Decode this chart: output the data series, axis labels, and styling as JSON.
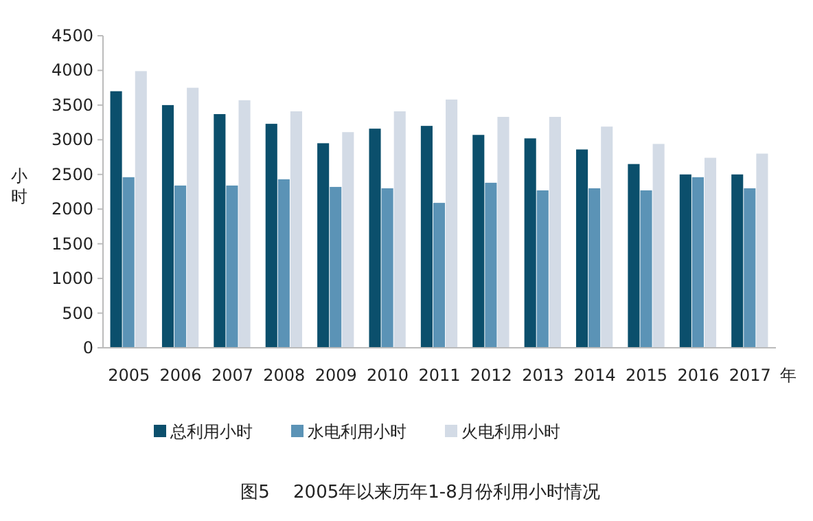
{
  "chart_data": {
    "type": "bar",
    "title": "图5　 2005年以来历年1-8月份利用小时情况",
    "xlabel": "年",
    "ylabel": "小时",
    "categories": [
      "2005",
      "2006",
      "2007",
      "2008",
      "2009",
      "2010",
      "2011",
      "2012",
      "2013",
      "2014",
      "2015",
      "2016",
      "2017"
    ],
    "ylim": [
      0,
      4500
    ],
    "yticks": [
      0,
      500,
      1000,
      1500,
      2000,
      2500,
      3000,
      3500,
      4000,
      4500
    ],
    "grid": false,
    "legend": "bottom",
    "series": [
      {
        "name": "总利用小时",
        "color": "#0b4f6c",
        "values": [
          3700,
          3500,
          3370,
          3230,
          2950,
          3160,
          3200,
          3070,
          3020,
          2860,
          2650,
          2500,
          2500
        ]
      },
      {
        "name": "水电利用小时",
        "color": "#5b93b6",
        "values": [
          2460,
          2340,
          2340,
          2430,
          2320,
          2300,
          2090,
          2380,
          2270,
          2300,
          2270,
          2460,
          2300
        ]
      },
      {
        "name": "火电利用小时",
        "color": "#d3dbe6",
        "values": [
          3990,
          3750,
          3570,
          3410,
          3110,
          3410,
          3580,
          3330,
          3330,
          3190,
          2940,
          2740,
          2800
        ]
      }
    ]
  }
}
